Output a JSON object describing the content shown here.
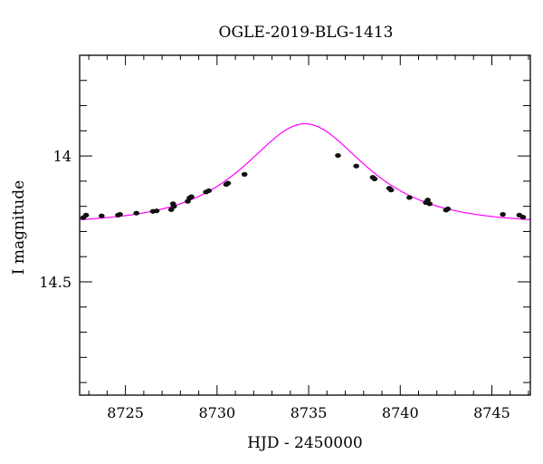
{
  "chart_data": {
    "type": "scatter",
    "title": "OGLE-2019-BLG-1413",
    "xlabel": "HJD - 2450000",
    "ylabel": "I magnitude",
    "xlim": [
      8722.5,
      8747.1
    ],
    "ylim": [
      14.95,
      13.6
    ],
    "y_inverted": true,
    "x_major_ticks": [
      8725,
      8730,
      8735,
      8740,
      8745
    ],
    "x_tick_labels": [
      "8725",
      "8730",
      "8735",
      "8740",
      "8745"
    ],
    "y_major_ticks": [
      14.0,
      14.5
    ],
    "y_tick_labels": [
      "14",
      "14.5"
    ],
    "y_minor_ticks": [
      13.7,
      13.8,
      13.9,
      14.1,
      14.2,
      14.3,
      14.4,
      14.6,
      14.7,
      14.8,
      14.9
    ],
    "grid": false,
    "colors": {
      "data": "#111111",
      "model": "#ff00ff"
    },
    "series": [
      {
        "kind": "points",
        "x": [
          8722.7,
          8722.85,
          8723.7,
          8724.6,
          8724.7,
          8725.6,
          8726.5,
          8726.7,
          8727.5,
          8727.6,
          8727.65,
          8728.4,
          8728.5,
          8728.6,
          8729.4,
          8729.55,
          8730.5,
          8730.6,
          8731.5,
          8736.6,
          8737.6,
          8738.5,
          8738.6,
          8739.4,
          8739.5,
          8740.5,
          8741.4,
          8741.5,
          8741.6,
          8742.5,
          8742.6,
          8745.6,
          8746.5,
          8746.7
        ],
        "y": [
          14.245,
          14.235,
          14.238,
          14.235,
          14.232,
          14.227,
          14.22,
          14.218,
          14.213,
          14.19,
          14.2,
          14.18,
          14.167,
          14.162,
          14.143,
          14.138,
          14.113,
          14.108,
          14.073,
          13.998,
          14.04,
          14.085,
          14.091,
          14.128,
          14.135,
          14.165,
          14.185,
          14.175,
          14.19,
          14.215,
          14.21,
          14.232,
          14.235,
          14.243
        ]
      },
      {
        "kind": "model",
        "t0": 8734.8,
        "tE": 4.2,
        "u0": 0.88,
        "baseline_mag": 14.27
      }
    ]
  }
}
